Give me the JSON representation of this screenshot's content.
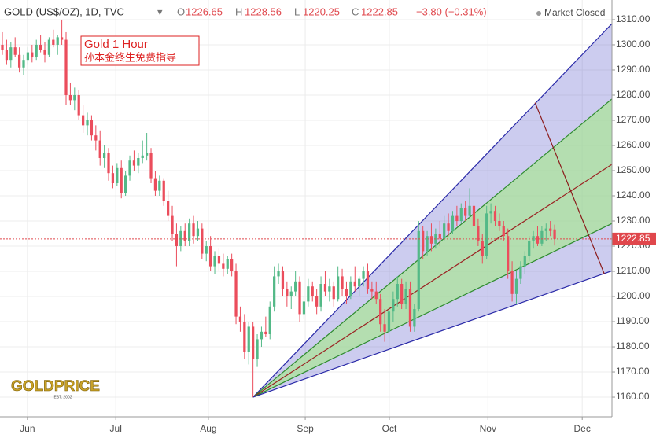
{
  "header": {
    "symbol": "GOLD (US$/OZ), 1D, TVC",
    "open_key": "O",
    "open": "1226.65",
    "high_key": "H",
    "high": "1228.56",
    "low_key": "L",
    "low": "1220.25",
    "close_key": "C",
    "close": "1222.85",
    "change": "−3.80 (−0.31%)",
    "status": "Market Closed"
  },
  "annotation": {
    "title": "Gold 1 Hour",
    "text": "孙本金终生免费指导"
  },
  "logo": {
    "name": "GOLDPRICE",
    "est": "EST. 2002"
  },
  "chart_data": {
    "type": "candlestick",
    "up_color": "#53b987",
    "down_color": "#eb4d5c",
    "xlim": [
      -0.556,
      143.5
    ],
    "ylim": [
      1152.2,
      1317.8
    ],
    "xticks": [
      {
        "value": 5.9,
        "label": "Jun"
      },
      {
        "value": 26.7,
        "label": "Jul"
      },
      {
        "value": 48.5,
        "label": "Aug"
      },
      {
        "value": 71.3,
        "label": "Sep"
      },
      {
        "value": 91.1,
        "label": "Oct"
      },
      {
        "value": 114.3,
        "label": "Nov"
      },
      {
        "value": 136.5,
        "label": "Dec"
      }
    ],
    "yticks": [
      {
        "value": 1160,
        "label": "1160.00"
      },
      {
        "value": 1170,
        "label": "1170.00"
      },
      {
        "value": 1180,
        "label": "1180.00"
      },
      {
        "value": 1190,
        "label": "1190.00"
      },
      {
        "value": 1200,
        "label": "1200.00"
      },
      {
        "value": 1210,
        "label": "1210.00"
      },
      {
        "value": 1220,
        "label": "1220.00"
      },
      {
        "value": 1230,
        "label": "1230.00"
      },
      {
        "value": 1240,
        "label": "1240.00"
      },
      {
        "value": 1250,
        "label": "1250.00"
      },
      {
        "value": 1260,
        "label": "1260.00"
      },
      {
        "value": 1270,
        "label": "1270.00"
      },
      {
        "value": 1280,
        "label": "1280.00"
      },
      {
        "value": 1290,
        "label": "1290.00"
      },
      {
        "value": 1300,
        "label": "1300.00"
      },
      {
        "value": 1310,
        "label": "1310.00"
      }
    ],
    "grid": true,
    "last_price": 1222.85,
    "last_price_color": "#e0474c",
    "fan": {
      "origin": [
        59,
        1160
      ],
      "end_x": 143.5,
      "lines": [
        {
          "y": 1308.4,
          "color": "#2a2aa8"
        },
        {
          "y": 1278.5,
          "color": "#2e8b2e"
        },
        {
          "y": 1252.5,
          "color": "#9b2222"
        },
        {
          "y": 1229,
          "color": "#2e8b2e"
        },
        {
          "y": 1210.2,
          "color": "#2a2aa8"
        }
      ]
    },
    "segments": [
      {
        "x": [
          125.4,
          141.7
        ],
        "y": [
          1277,
          1209
        ],
        "color": "#8b1a1a"
      }
    ],
    "candles": [
      [
        1300,
        1305,
        1296,
        1298
      ],
      [
        1298,
        1302,
        1292,
        1294
      ],
      [
        1294,
        1301,
        1291,
        1299
      ],
      [
        1299,
        1303,
        1295,
        1296
      ],
      [
        1296,
        1299,
        1289,
        1291
      ],
      [
        1291,
        1296,
        1288,
        1294
      ],
      [
        1294,
        1299,
        1292,
        1297
      ],
      [
        1297,
        1300,
        1293,
        1295
      ],
      [
        1295,
        1302,
        1294,
        1300
      ],
      [
        1300,
        1304,
        1297,
        1298
      ],
      [
        1298,
        1301,
        1293,
        1296
      ],
      [
        1296,
        1303,
        1295,
        1302
      ],
      [
        1302,
        1306,
        1299,
        1300
      ],
      [
        1300,
        1304,
        1296,
        1303
      ],
      [
        1303,
        1310,
        1300,
        1302
      ],
      [
        1302,
        1305,
        1276,
        1280
      ],
      [
        1280,
        1285,
        1276,
        1278
      ],
      [
        1278,
        1283,
        1274,
        1280
      ],
      [
        1280,
        1282,
        1270,
        1272
      ],
      [
        1272,
        1276,
        1265,
        1268
      ],
      [
        1268,
        1273,
        1264,
        1270
      ],
      [
        1270,
        1272,
        1262,
        1264
      ],
      [
        1264,
        1268,
        1258,
        1262
      ],
      [
        1262,
        1266,
        1252,
        1255
      ],
      [
        1255,
        1260,
        1251,
        1257
      ],
      [
        1257,
        1259,
        1246,
        1249
      ],
      [
        1249,
        1252,
        1243,
        1245
      ],
      [
        1245,
        1253,
        1244,
        1251
      ],
      [
        1251,
        1254,
        1239,
        1241
      ],
      [
        1241,
        1250,
        1240,
        1248
      ],
      [
        1248,
        1256,
        1246,
        1254
      ],
      [
        1254,
        1258,
        1250,
        1252
      ],
      [
        1252,
        1257,
        1249,
        1255
      ],
      [
        1255,
        1262,
        1253,
        1256
      ],
      [
        1256,
        1265,
        1254,
        1257
      ],
      [
        1257,
        1259,
        1245,
        1247
      ],
      [
        1247,
        1250,
        1240,
        1242
      ],
      [
        1242,
        1248,
        1240,
        1246
      ],
      [
        1246,
        1247,
        1236,
        1238
      ],
      [
        1238,
        1242,
        1230,
        1232
      ],
      [
        1232,
        1236,
        1222,
        1225
      ],
      [
        1225,
        1229,
        1212,
        1220
      ],
      [
        1220,
        1228,
        1218,
        1226
      ],
      [
        1226,
        1229,
        1220,
        1222
      ],
      [
        1222,
        1231,
        1220,
        1229
      ],
      [
        1229,
        1232,
        1221,
        1224
      ],
      [
        1224,
        1230,
        1222,
        1227
      ],
      [
        1227,
        1229,
        1215,
        1217
      ],
      [
        1217,
        1222,
        1214,
        1220
      ],
      [
        1220,
        1224,
        1210,
        1212
      ],
      [
        1212,
        1218,
        1209,
        1216
      ],
      [
        1216,
        1219,
        1210,
        1213
      ],
      [
        1213,
        1217,
        1208,
        1211
      ],
      [
        1211,
        1216,
        1209,
        1215
      ],
      [
        1215,
        1217,
        1208,
        1210
      ],
      [
        1210,
        1213,
        1189,
        1192
      ],
      [
        1192,
        1196,
        1186,
        1190
      ],
      [
        1190,
        1193,
        1175,
        1178
      ],
      [
        1178,
        1190,
        1173,
        1188
      ],
      [
        1188,
        1190,
        1160,
        1175
      ],
      [
        1175,
        1185,
        1172,
        1183
      ],
      [
        1183,
        1188,
        1180,
        1186
      ],
      [
        1186,
        1192,
        1184,
        1185
      ],
      [
        1185,
        1198,
        1183,
        1196
      ],
      [
        1196,
        1212,
        1194,
        1208
      ],
      [
        1208,
        1213,
        1205,
        1210
      ],
      [
        1210,
        1212,
        1200,
        1203
      ],
      [
        1203,
        1206,
        1196,
        1200
      ],
      [
        1200,
        1204,
        1195,
        1202
      ],
      [
        1202,
        1210,
        1200,
        1206
      ],
      [
        1206,
        1208,
        1190,
        1193
      ],
      [
        1193,
        1200,
        1191,
        1198
      ],
      [
        1198,
        1207,
        1196,
        1204
      ],
      [
        1204,
        1206,
        1198,
        1200
      ],
      [
        1200,
        1203,
        1193,
        1196
      ],
      [
        1196,
        1208,
        1194,
        1205
      ],
      [
        1205,
        1210,
        1200,
        1202
      ],
      [
        1202,
        1207,
        1198,
        1204
      ],
      [
        1204,
        1206,
        1196,
        1199
      ],
      [
        1199,
        1212,
        1198,
        1208
      ],
      [
        1208,
        1211,
        1200,
        1203
      ],
      [
        1203,
        1206,
        1197,
        1200
      ],
      [
        1200,
        1208,
        1199,
        1206
      ],
      [
        1206,
        1212,
        1202,
        1204
      ],
      [
        1204,
        1208,
        1200,
        1207
      ],
      [
        1207,
        1212,
        1204,
        1210
      ],
      [
        1210,
        1213,
        1201,
        1203
      ],
      [
        1203,
        1206,
        1199,
        1202
      ],
      [
        1202,
        1206,
        1197,
        1199
      ],
      [
        1199,
        1201,
        1186,
        1189
      ],
      [
        1189,
        1195,
        1182,
        1186
      ],
      [
        1186,
        1196,
        1185,
        1194
      ],
      [
        1194,
        1202,
        1190,
        1199
      ],
      [
        1199,
        1208,
        1196,
        1205
      ],
      [
        1205,
        1207,
        1195,
        1197
      ],
      [
        1197,
        1206,
        1195,
        1203
      ],
      [
        1203,
        1206,
        1186,
        1188
      ],
      [
        1188,
        1197,
        1186,
        1195
      ],
      [
        1195,
        1230,
        1194,
        1226
      ],
      [
        1226,
        1228,
        1215,
        1218
      ],
      [
        1218,
        1226,
        1216,
        1224
      ],
      [
        1224,
        1229,
        1218,
        1221
      ],
      [
        1221,
        1227,
        1219,
        1225
      ],
      [
        1225,
        1230,
        1220,
        1223
      ],
      [
        1223,
        1232,
        1222,
        1229
      ],
      [
        1229,
        1233,
        1224,
        1226
      ],
      [
        1226,
        1234,
        1225,
        1232
      ],
      [
        1232,
        1236,
        1228,
        1230
      ],
      [
        1230,
        1237,
        1229,
        1235
      ],
      [
        1235,
        1238,
        1230,
        1232
      ],
      [
        1232,
        1243,
        1231,
        1236
      ],
      [
        1236,
        1238,
        1226,
        1228
      ],
      [
        1228,
        1231,
        1220,
        1222
      ],
      [
        1222,
        1225,
        1213,
        1216
      ],
      [
        1216,
        1236,
        1215,
        1233
      ],
      [
        1233,
        1237,
        1229,
        1234
      ],
      [
        1234,
        1236,
        1228,
        1230
      ],
      [
        1230,
        1233,
        1226,
        1228
      ],
      [
        1228,
        1230,
        1222,
        1224
      ],
      [
        1224,
        1227,
        1207,
        1210
      ],
      [
        1210,
        1214,
        1198,
        1201
      ],
      [
        1201,
        1210,
        1197,
        1207
      ],
      [
        1207,
        1214,
        1205,
        1212
      ],
      [
        1212,
        1218,
        1209,
        1216
      ],
      [
        1216,
        1224,
        1214,
        1222
      ],
      [
        1222,
        1226,
        1219,
        1224
      ],
      [
        1224,
        1228,
        1220,
        1221
      ],
      [
        1221,
        1228,
        1220,
        1226
      ],
      [
        1226,
        1229,
        1222,
        1227
      ],
      [
        1227,
        1230,
        1224,
        1226
      ],
      [
        1226.65,
        1228.56,
        1220.25,
        1222.85
      ]
    ]
  }
}
